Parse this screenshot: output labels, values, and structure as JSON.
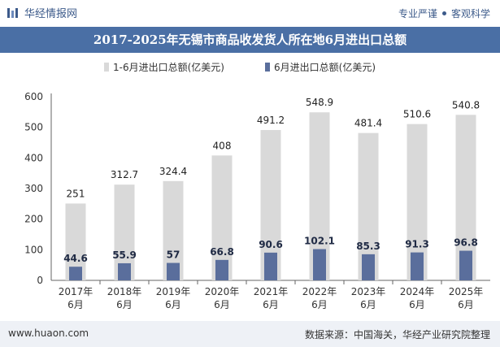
{
  "header": {
    "logo_text": "华经情报网",
    "tagline_1": "专业严谨",
    "tagline_2": "客观科学"
  },
  "footer": {
    "website": "www.huaon.com",
    "source": "数据来源：中国海关，华经产业研究院整理"
  },
  "colors": {
    "series1": "#d9d9d9",
    "series2": "#5a6e9c",
    "title_bg": "#4a6fa5",
    "footer_bg": "#eef1f6"
  },
  "chart_data": {
    "type": "bar",
    "title": "2017-2025年无锡市商品收发货人所在地6月进出口总额",
    "categories": [
      "2017年\n6月",
      "2018年\n6月",
      "2019年\n6月",
      "2020年\n6月",
      "2021年\n6月",
      "2022年\n6月",
      "2023年\n6月",
      "2024年\n6月",
      "2025年\n6月"
    ],
    "series": [
      {
        "name": "1-6月进出口总额(亿美元)",
        "values": [
          251,
          312.7,
          324.4,
          408,
          491.2,
          548.9,
          481.4,
          510.6,
          540.8
        ]
      },
      {
        "name": "6月进出口总额(亿美元)",
        "values": [
          44.6,
          55.9,
          57,
          66.8,
          90.6,
          102.1,
          85.3,
          91.3,
          96.8
        ]
      }
    ],
    "ylim": [
      0,
      600
    ],
    "yticks": [
      0,
      100,
      200,
      300,
      400,
      500,
      600
    ],
    "legend_position": "top",
    "grid": false
  }
}
